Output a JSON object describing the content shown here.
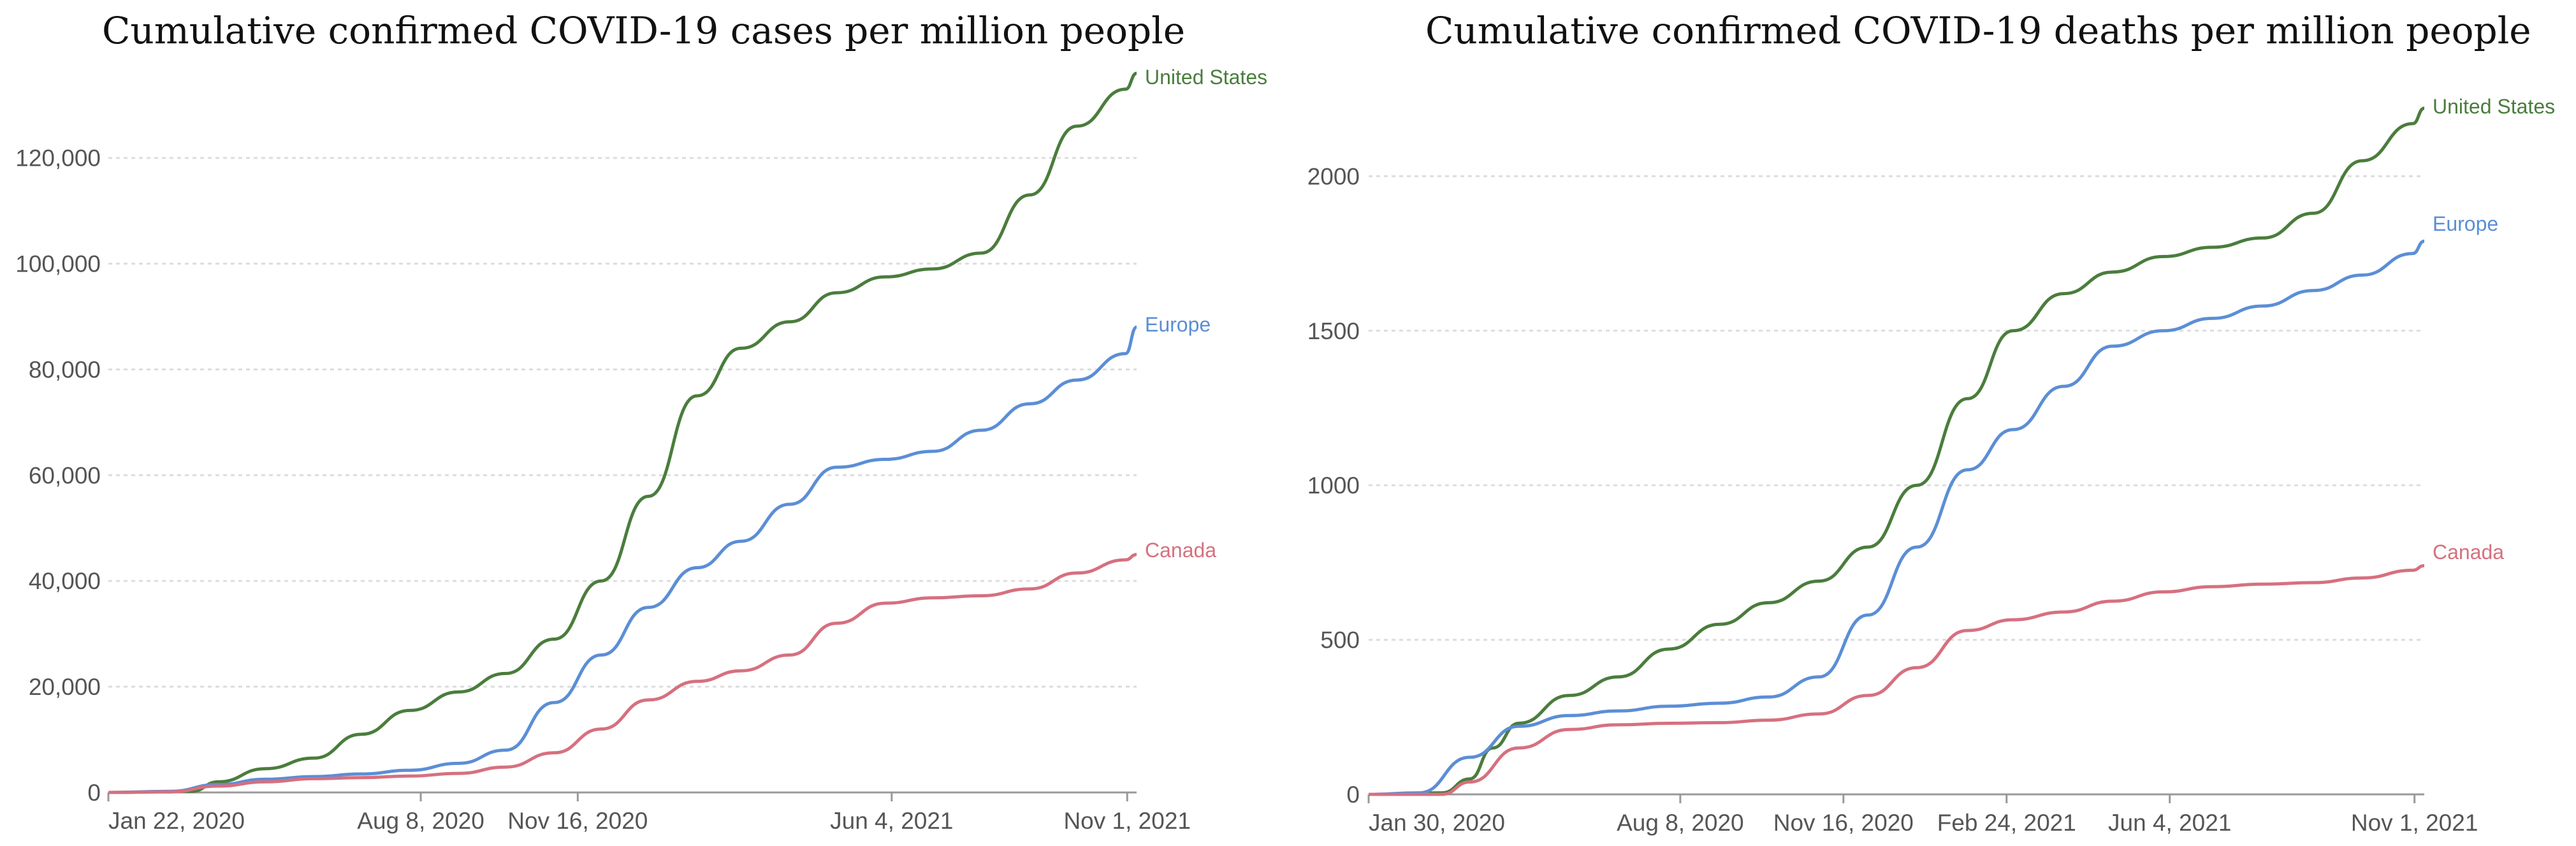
{
  "chart_data": [
    {
      "type": "line",
      "title": "Cumulative confirmed COVID-19 cases per million people",
      "xlabel": "",
      "ylabel": "",
      "x_start": "2020-01-22",
      "x_end": "2021-11-07",
      "xticks": [
        {
          "label": "Jan 22, 2020",
          "date": "2020-01-22"
        },
        {
          "label": "Aug 8, 2020",
          "date": "2020-08-08"
        },
        {
          "label": "Nov 16, 2020",
          "date": "2020-11-16"
        },
        {
          "label": "Jun 4, 2021",
          "date": "2021-06-04"
        },
        {
          "label": "Nov 1, 2021",
          "date": "2021-11-01"
        }
      ],
      "ylim": [
        0,
        136000
      ],
      "yticks": [
        {
          "label": "0",
          "value": 0
        },
        {
          "label": "20,000",
          "value": 20000
        },
        {
          "label": "40,000",
          "value": 40000
        },
        {
          "label": "60,000",
          "value": 60000
        },
        {
          "label": "80,000",
          "value": 80000
        },
        {
          "label": "100,000",
          "value": 100000
        },
        {
          "label": "120,000",
          "value": 120000
        }
      ],
      "series": [
        {
          "name": "United States",
          "color": "#4a7d3c",
          "points": [
            [
              "2020-01-22",
              0
            ],
            [
              "2020-03-15",
              200
            ],
            [
              "2020-04-01",
              2000
            ],
            [
              "2020-05-01",
              4500
            ],
            [
              "2020-06-01",
              6500
            ],
            [
              "2020-07-01",
              11000
            ],
            [
              "2020-08-01",
              15500
            ],
            [
              "2020-09-01",
              19000
            ],
            [
              "2020-10-01",
              22500
            ],
            [
              "2020-11-01",
              29000
            ],
            [
              "2020-12-01",
              40000
            ],
            [
              "2020-12-31",
              56000
            ],
            [
              "2021-01-31",
              75000
            ],
            [
              "2021-02-28",
              84000
            ],
            [
              "2021-03-31",
              89000
            ],
            [
              "2021-04-30",
              94500
            ],
            [
              "2021-05-31",
              97500
            ],
            [
              "2021-06-30",
              99000
            ],
            [
              "2021-07-31",
              102000
            ],
            [
              "2021-08-31",
              113000
            ],
            [
              "2021-09-30",
              126000
            ],
            [
              "2021-10-31",
              133000
            ],
            [
              "2021-11-07",
              136000
            ]
          ]
        },
        {
          "name": "Europe",
          "color": "#5b8ed6",
          "points": [
            [
              "2020-01-22",
              0
            ],
            [
              "2020-03-01",
              200
            ],
            [
              "2020-04-01",
              1500
            ],
            [
              "2020-05-01",
              2500
            ],
            [
              "2020-06-01",
              3000
            ],
            [
              "2020-07-01",
              3500
            ],
            [
              "2020-08-01",
              4200
            ],
            [
              "2020-09-01",
              5500
            ],
            [
              "2020-10-01",
              8000
            ],
            [
              "2020-11-01",
              17000
            ],
            [
              "2020-12-01",
              26000
            ],
            [
              "2020-12-31",
              35000
            ],
            [
              "2021-01-31",
              42500
            ],
            [
              "2021-02-28",
              47500
            ],
            [
              "2021-03-31",
              54500
            ],
            [
              "2021-04-30",
              61500
            ],
            [
              "2021-05-31",
              63000
            ],
            [
              "2021-06-30",
              64500
            ],
            [
              "2021-07-31",
              68500
            ],
            [
              "2021-08-31",
              73500
            ],
            [
              "2021-09-30",
              78000
            ],
            [
              "2021-10-31",
              83000
            ],
            [
              "2021-11-07",
              88000
            ]
          ]
        },
        {
          "name": "Canada",
          "color": "#d6707f",
          "points": [
            [
              "2020-01-22",
              0
            ],
            [
              "2020-03-01",
              100
            ],
            [
              "2020-04-01",
              1200
            ],
            [
              "2020-05-01",
              2000
            ],
            [
              "2020-06-01",
              2600
            ],
            [
              "2020-07-01",
              2800
            ],
            [
              "2020-08-01",
              3100
            ],
            [
              "2020-09-01",
              3600
            ],
            [
              "2020-10-01",
              4800
            ],
            [
              "2020-11-01",
              7500
            ],
            [
              "2020-12-01",
              12000
            ],
            [
              "2020-12-31",
              17500
            ],
            [
              "2021-01-31",
              21000
            ],
            [
              "2021-02-28",
              23000
            ],
            [
              "2021-03-31",
              26000
            ],
            [
              "2021-04-30",
              32000
            ],
            [
              "2021-05-31",
              35800
            ],
            [
              "2021-06-30",
              36800
            ],
            [
              "2021-07-31",
              37200
            ],
            [
              "2021-08-31",
              38500
            ],
            [
              "2021-09-30",
              41500
            ],
            [
              "2021-10-31",
              44000
            ],
            [
              "2021-11-07",
              45000
            ]
          ]
        }
      ]
    },
    {
      "type": "line",
      "title": "Cumulative confirmed COVID-19 deaths per million people",
      "xlabel": "",
      "ylabel": "",
      "x_start": "2020-01-30",
      "x_end": "2021-11-07",
      "xticks": [
        {
          "label": "Jan 30, 2020",
          "date": "2020-01-30"
        },
        {
          "label": "Aug 8, 2020",
          "date": "2020-08-08"
        },
        {
          "label": "Nov 16, 2020",
          "date": "2020-11-16"
        },
        {
          "label": "Feb 24, 2021",
          "date": "2021-02-24"
        },
        {
          "label": "Jun 4, 2021",
          "date": "2021-06-04"
        },
        {
          "label": "Nov 1, 2021",
          "date": "2021-11-01"
        }
      ],
      "ylim": [
        0,
        2240
      ],
      "yticks": [
        {
          "label": "0",
          "value": 0
        },
        {
          "label": "500",
          "value": 500
        },
        {
          "label": "1000",
          "value": 1000
        },
        {
          "label": "1500",
          "value": 1500
        },
        {
          "label": "2000",
          "value": 2000
        }
      ],
      "series": [
        {
          "name": "United States",
          "color": "#4a7d3c",
          "points": [
            [
              "2020-01-30",
              0
            ],
            [
              "2020-03-15",
              5
            ],
            [
              "2020-04-01",
              50
            ],
            [
              "2020-04-15",
              150
            ],
            [
              "2020-05-01",
              230
            ],
            [
              "2020-06-01",
              320
            ],
            [
              "2020-07-01",
              380
            ],
            [
              "2020-08-01",
              470
            ],
            [
              "2020-09-01",
              550
            ],
            [
              "2020-10-01",
              620
            ],
            [
              "2020-11-01",
              690
            ],
            [
              "2020-12-01",
              800
            ],
            [
              "2020-12-31",
              1000
            ],
            [
              "2021-01-31",
              1280
            ],
            [
              "2021-02-28",
              1500
            ],
            [
              "2021-03-31",
              1620
            ],
            [
              "2021-04-30",
              1690
            ],
            [
              "2021-05-31",
              1740
            ],
            [
              "2021-06-30",
              1770
            ],
            [
              "2021-07-31",
              1800
            ],
            [
              "2021-08-31",
              1880
            ],
            [
              "2021-09-30",
              2050
            ],
            [
              "2021-10-31",
              2170
            ],
            [
              "2021-11-07",
              2220
            ]
          ]
        },
        {
          "name": "Europe",
          "color": "#5b8ed6",
          "points": [
            [
              "2020-01-30",
              0
            ],
            [
              "2020-03-01",
              5
            ],
            [
              "2020-04-01",
              120
            ],
            [
              "2020-05-01",
              220
            ],
            [
              "2020-06-01",
              255
            ],
            [
              "2020-07-01",
              270
            ],
            [
              "2020-08-01",
              285
            ],
            [
              "2020-09-01",
              295
            ],
            [
              "2020-10-01",
              315
            ],
            [
              "2020-11-01",
              380
            ],
            [
              "2020-12-01",
              580
            ],
            [
              "2020-12-31",
              800
            ],
            [
              "2021-01-31",
              1050
            ],
            [
              "2021-02-28",
              1180
            ],
            [
              "2021-03-31",
              1320
            ],
            [
              "2021-04-30",
              1450
            ],
            [
              "2021-05-31",
              1500
            ],
            [
              "2021-06-30",
              1540
            ],
            [
              "2021-07-31",
              1580
            ],
            [
              "2021-08-31",
              1630
            ],
            [
              "2021-09-30",
              1680
            ],
            [
              "2021-10-31",
              1750
            ],
            [
              "2021-11-07",
              1790
            ]
          ]
        },
        {
          "name": "Canada",
          "color": "#d6707f",
          "points": [
            [
              "2020-01-30",
              0
            ],
            [
              "2020-03-15",
              0
            ],
            [
              "2020-04-01",
              40
            ],
            [
              "2020-05-01",
              150
            ],
            [
              "2020-06-01",
              210
            ],
            [
              "2020-07-01",
              225
            ],
            [
              "2020-08-01",
              230
            ],
            [
              "2020-09-01",
              232
            ],
            [
              "2020-10-01",
              240
            ],
            [
              "2020-11-01",
              260
            ],
            [
              "2020-12-01",
              320
            ],
            [
              "2020-12-31",
              410
            ],
            [
              "2021-01-31",
              530
            ],
            [
              "2021-02-28",
              565
            ],
            [
              "2021-03-31",
              590
            ],
            [
              "2021-04-30",
              625
            ],
            [
              "2021-05-31",
              655
            ],
            [
              "2021-06-30",
              672
            ],
            [
              "2021-07-31",
              680
            ],
            [
              "2021-08-31",
              685
            ],
            [
              "2021-09-30",
              700
            ],
            [
              "2021-10-31",
              725
            ],
            [
              "2021-11-07",
              740
            ]
          ]
        }
      ]
    }
  ]
}
